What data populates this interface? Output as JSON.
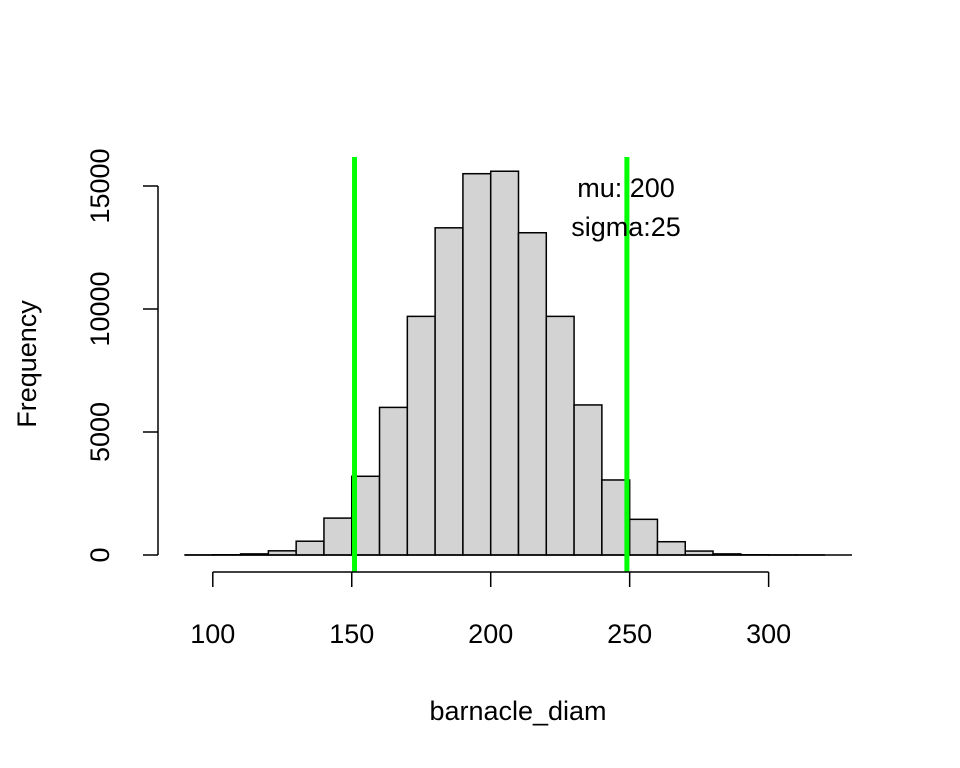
{
  "chart_data": {
    "type": "bar",
    "title": "",
    "xlabel": "barnacle_diam",
    "ylabel": "Frequency",
    "bin_edges": [
      90,
      100,
      110,
      120,
      130,
      140,
      150,
      160,
      170,
      180,
      190,
      200,
      210,
      220,
      230,
      240,
      250,
      260,
      270,
      280,
      290,
      300,
      310,
      320,
      330
    ],
    "values": [
      2,
      10,
      45,
      170,
      560,
      1500,
      3200,
      6000,
      9700,
      13300,
      15500,
      15600,
      13100,
      9700,
      6100,
      3050,
      1450,
      540,
      160,
      45,
      10,
      3,
      1,
      0
    ],
    "xlim": [
      90,
      330
    ],
    "ylim": [
      0,
      16000
    ],
    "x_ticks": [
      100,
      150,
      200,
      250,
      300
    ],
    "y_ticks": [
      0,
      5000,
      10000,
      15000
    ],
    "bar_fill": "#d3d3d3",
    "bar_stroke": "#000000",
    "grid": false,
    "vlines": [
      {
        "x": 151,
        "color": "#00ff00"
      },
      {
        "x": 249,
        "color": "#00ff00"
      }
    ],
    "annotations": [
      {
        "text": "mu: 200"
      },
      {
        "text": "sigma:25"
      }
    ]
  }
}
